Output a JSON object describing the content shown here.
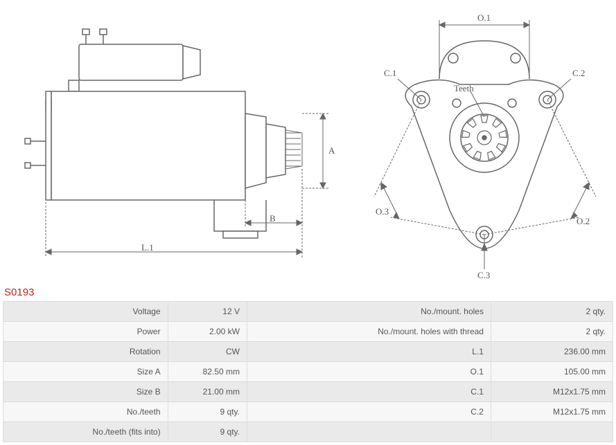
{
  "part_number": "S0193",
  "diagram_left": {
    "labels": {
      "L1": "L.1",
      "A": "A",
      "B": "B"
    },
    "stroke": "#666666",
    "dim_stroke": "#666666",
    "fill": "#ffffff",
    "label_fontsize": 13,
    "label_color": "#555555"
  },
  "diagram_right": {
    "labels": {
      "O1": "O.1",
      "O2": "O.2",
      "O3": "O.3",
      "C1": "C.1",
      "C2": "C.2",
      "C3": "C.3",
      "Teeth": "Teeth"
    },
    "stroke": "#666666",
    "dim_stroke": "#666666",
    "fill": "#ffffff",
    "label_fontsize": 13,
    "label_color": "#555555"
  },
  "spec_rows": [
    {
      "l": "Voltage",
      "v": "12 V",
      "l2": "No./mount. holes",
      "v2": "2 qty."
    },
    {
      "l": "Power",
      "v": "2.00 kW",
      "l2": "No./mount. holes with thread",
      "v2": "2 qty."
    },
    {
      "l": "Rotation",
      "v": "CW",
      "l2": "L.1",
      "v2": "236.00 mm"
    },
    {
      "l": "Size A",
      "v": "82.50 mm",
      "l2": "O.1",
      "v2": "105.00 mm"
    },
    {
      "l": "Size B",
      "v": "21.00 mm",
      "l2": "C.1",
      "v2": "M12x1.75 mm"
    },
    {
      "l": "No./teeth",
      "v": "9 qty.",
      "l2": "C.2",
      "v2": "M12x1.75 mm"
    },
    {
      "l": "No./teeth (fits into)",
      "v": "9 qty.",
      "l2": "",
      "v2": ""
    }
  ]
}
